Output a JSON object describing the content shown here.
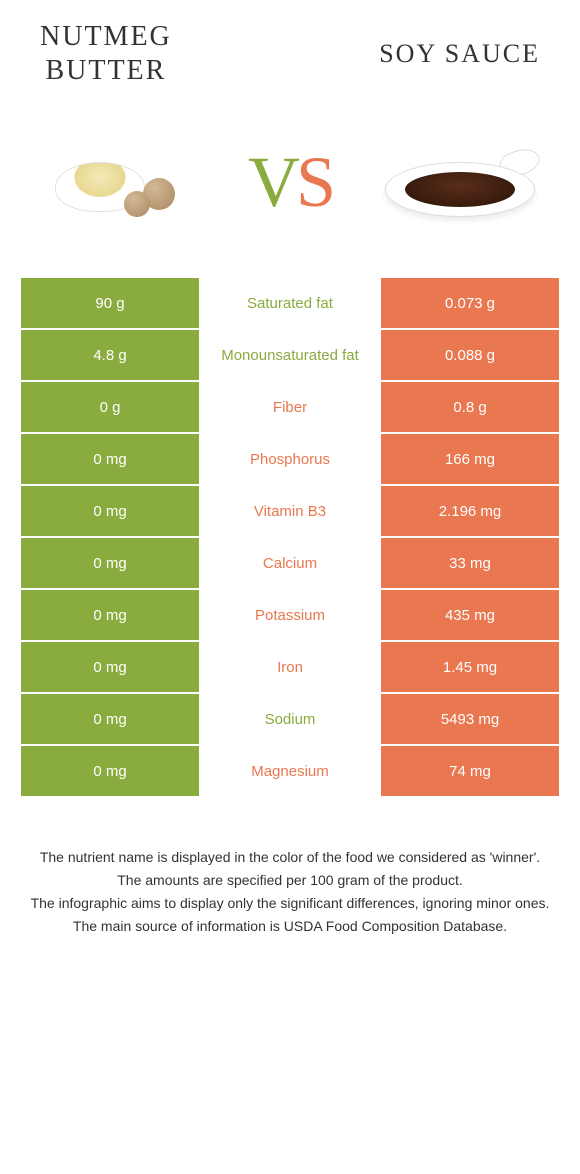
{
  "header": {
    "left_title": "NUTMEG\nBUTTER",
    "right_title": "SOY SAUCE",
    "vs_text": "VS"
  },
  "colors": {
    "green": "#8aab3e",
    "orange": "#e97850",
    "text": "#333333",
    "white": "#ffffff"
  },
  "table": {
    "rows": [
      {
        "left": "90 g",
        "label": "Saturated fat",
        "right": "0.073 g",
        "winner": "green"
      },
      {
        "left": "4.8 g",
        "label": "Monounsaturated fat",
        "right": "0.088 g",
        "winner": "green"
      },
      {
        "left": "0 g",
        "label": "Fiber",
        "right": "0.8 g",
        "winner": "orange"
      },
      {
        "left": "0 mg",
        "label": "Phosphorus",
        "right": "166 mg",
        "winner": "orange"
      },
      {
        "left": "0 mg",
        "label": "Vitamin B3",
        "right": "2.196 mg",
        "winner": "orange"
      },
      {
        "left": "0 mg",
        "label": "Calcium",
        "right": "33 mg",
        "winner": "orange"
      },
      {
        "left": "0 mg",
        "label": "Potassium",
        "right": "435 mg",
        "winner": "orange"
      },
      {
        "left": "0 mg",
        "label": "Iron",
        "right": "1.45 mg",
        "winner": "orange"
      },
      {
        "left": "0 mg",
        "label": "Sodium",
        "right": "5493 mg",
        "winner": "green"
      },
      {
        "left": "0 mg",
        "label": "Magnesium",
        "right": "74 mg",
        "winner": "orange"
      }
    ]
  },
  "footer": {
    "line1": "The nutrient name is displayed in the color of the food we considered as 'winner'.",
    "line2": "The amounts are specified per 100 gram of the product.",
    "line3": "The infographic aims to display only the significant differences, ignoring minor ones.",
    "line4": "The main source of information is USDA Food Composition Database."
  }
}
